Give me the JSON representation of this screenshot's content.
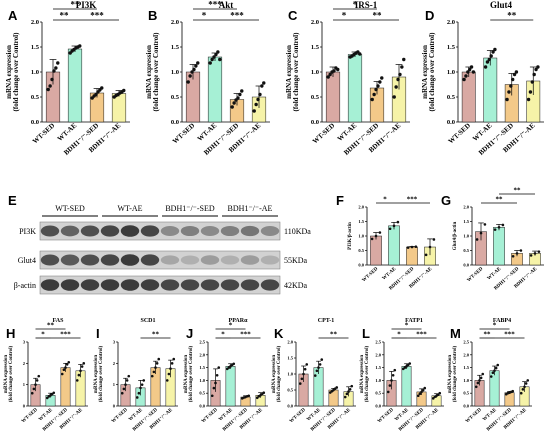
{
  "colors": {
    "WT-SED": "#d9a9a3",
    "WT-AE": "#a6f0d5",
    "BDH1-SED": "#f3c989",
    "BDH1-AE": "#f6f3a8",
    "edge": "#1a1a1a",
    "dot": "#111111"
  },
  "blot": {
    "letter": "E",
    "groups": [
      "WT-SED",
      "WT-AE",
      "BDH1⁻/⁻-SED",
      "BDH1⁻/⁻-AE"
    ],
    "rows": [
      {
        "label": "PI3K",
        "size": "110KDa",
        "intensity": [
          0.8,
          0.7,
          0.8,
          0.85,
          0.9,
          0.85,
          0.5,
          0.55,
          0.5,
          0.55,
          0.6,
          0.5
        ]
      },
      {
        "label": "Glut4",
        "size": "55KDa",
        "intensity": [
          0.8,
          0.75,
          0.8,
          0.85,
          0.9,
          0.85,
          0.35,
          0.3,
          0.4,
          0.3,
          0.4,
          0.3
        ]
      },
      {
        "label": "β-actin",
        "size": "42KDa",
        "intensity": [
          0.9,
          0.9,
          0.88,
          0.9,
          0.9,
          0.88,
          0.85,
          0.85,
          0.85,
          0.85,
          0.85,
          0.85
        ]
      }
    ]
  },
  "chart_data": [
    {
      "letter": "A",
      "type": "bar",
      "title": "PI3K",
      "ylabel": "mRNA expression",
      "ylabel2": "(fold change over Control)",
      "categories": [
        "WT-SED",
        "WT-AE",
        "BDH1⁻/⁻-SED",
        "BDH1⁻/⁻-AE"
      ],
      "values": [
        1.0,
        1.46,
        0.58,
        0.57
      ],
      "errors": [
        0.25,
        0.06,
        0.09,
        0.06
      ],
      "ylim": [
        0,
        2.0
      ],
      "yticks": [
        "0.0",
        "0.5",
        "1.0",
        "1.5",
        "2.0"
      ],
      "points": [
        [
          0.65,
          0.72,
          0.85,
          1.02,
          1.08,
          1.18
        ],
        [
          1.38,
          1.42,
          1.45,
          1.48,
          1.5,
          1.52
        ],
        [
          0.48,
          0.52,
          0.55,
          0.6,
          0.64,
          0.68
        ],
        [
          0.5,
          0.53,
          0.55,
          0.58,
          0.6,
          0.63
        ]
      ],
      "sig": [
        {
          "from": 0,
          "to": 1,
          "level": 1,
          "label": "**"
        },
        {
          "from": 0,
          "to": 2,
          "level": 2,
          "label": "**"
        },
        {
          "from": 1,
          "to": 3,
          "level": 1,
          "label": "***"
        }
      ]
    },
    {
      "letter": "B",
      "type": "bar",
      "title": "Akt",
      "ylabel": "mRNA expression",
      "ylabel2": "(fold change over Control)",
      "categories": [
        "WT-SED",
        "WT-AE",
        "BDH1⁻/⁻-SED",
        "BDH1⁻/⁻-AE"
      ],
      "values": [
        1.0,
        1.3,
        0.45,
        0.5
      ],
      "errors": [
        0.15,
        0.08,
        0.12,
        0.22
      ],
      "ylim": [
        0,
        2.0
      ],
      "yticks": [
        "0.0",
        "0.5",
        "1.0",
        "1.5",
        "2.0"
      ],
      "points": [
        [
          0.8,
          0.92,
          1.0,
          1.05,
          1.12,
          1.18
        ],
        [
          1.18,
          1.25,
          1.3,
          1.35,
          1.4,
          1.25
        ],
        [
          0.3,
          0.38,
          0.44,
          0.48,
          0.55,
          0.62
        ],
        [
          0.22,
          0.35,
          0.45,
          0.55,
          0.72,
          0.78
        ]
      ],
      "sig": [
        {
          "from": 0,
          "to": 1,
          "level": 1,
          "label": "*"
        },
        {
          "from": 0,
          "to": 2,
          "level": 2,
          "label": "***"
        },
        {
          "from": 1,
          "to": 3,
          "level": 1,
          "label": "***"
        }
      ]
    },
    {
      "letter": "C",
      "type": "bar",
      "title": "IRS-1",
      "ylabel": "mRNA expression",
      "ylabel2": "(fold change over Control)",
      "categories": [
        "WT-SED",
        "WT-AE",
        "BDH1⁻/⁻-SED",
        "BDH1⁻/⁻-AE"
      ],
      "values": [
        1.0,
        1.35,
        0.68,
        0.9
      ],
      "errors": [
        0.1,
        0.05,
        0.13,
        0.25
      ],
      "ylim": [
        0,
        2.0
      ],
      "yticks": [
        "0.0",
        "0.5",
        "1.0",
        "1.5",
        "2.0"
      ],
      "points": [
        [
          0.9,
          0.95,
          1.0,
          1.02,
          1.08,
          1.05
        ],
        [
          1.3,
          1.32,
          1.35,
          1.38,
          1.4,
          1.36
        ],
        [
          0.45,
          0.55,
          0.65,
          0.72,
          0.8,
          0.88
        ],
        [
          0.5,
          0.7,
          0.85,
          0.95,
          1.1,
          1.25
        ]
      ],
      "sig": [
        {
          "from": 0,
          "to": 1,
          "level": 1,
          "label": "*"
        },
        {
          "from": 0,
          "to": 2,
          "level": 2,
          "label": "*"
        },
        {
          "from": 1,
          "to": 3,
          "level": 1,
          "label": "**"
        }
      ]
    },
    {
      "letter": "D",
      "type": "bar",
      "title": "Glut4",
      "ylabel": "mRNA expression",
      "ylabel2": "(fold change over Control)",
      "categories": [
        "WT-SED",
        "WT-AE",
        "BDH1⁻/⁻-SED",
        "BDH1⁻/⁻-AE"
      ],
      "values": [
        1.0,
        1.28,
        0.75,
        0.82
      ],
      "errors": [
        0.1,
        0.15,
        0.22,
        0.28
      ],
      "ylim": [
        0,
        2.0
      ],
      "yticks": [
        "0.0",
        "0.5",
        "1.0",
        "1.5",
        "2.0"
      ],
      "points": [
        [
          0.85,
          0.92,
          1.0,
          1.05,
          1.1,
          1.0
        ],
        [
          1.1,
          1.2,
          1.25,
          1.32,
          1.4,
          1.45
        ],
        [
          0.45,
          0.6,
          0.72,
          0.85,
          0.95,
          1.0
        ],
        [
          0.45,
          0.6,
          0.8,
          0.95,
          1.05,
          1.1
        ]
      ],
      "sig": [
        {
          "from": 1,
          "to": 3,
          "level": 1,
          "label": "**"
        }
      ]
    },
    {
      "letter": "F",
      "type": "bar",
      "title": "",
      "ylabel": "PI3K/β-actin",
      "ylabel2": "",
      "categories": [
        "WT-SED",
        "WT-AE",
        "BDH1⁻/⁻-SED",
        "BDH1⁻/⁻-AE"
      ],
      "values": [
        1.0,
        1.35,
        0.62,
        0.62
      ],
      "errors": [
        0.12,
        0.12,
        0.02,
        0.28
      ],
      "ylim": [
        0,
        2.0
      ],
      "yticks": [
        "0.0",
        "0.5",
        "1.0",
        "1.5",
        "2.0"
      ],
      "points": [
        [
          0.9,
          1.0,
          1.12
        ],
        [
          1.25,
          1.35,
          1.48
        ],
        [
          0.6,
          0.62,
          0.63
        ],
        [
          0.35,
          0.62,
          0.88
        ]
      ],
      "sig": [
        {
          "from": 0,
          "to": 1,
          "level": 1,
          "label": "*"
        },
        {
          "from": 1,
          "to": 3,
          "level": 1,
          "label": "***"
        }
      ]
    },
    {
      "letter": "G",
      "type": "bar",
      "title": "",
      "ylabel": "Glut4/β-actin",
      "ylabel2": "",
      "categories": [
        "WT-SED",
        "WT-AE",
        "BDH1⁻/⁻-SED",
        "BDH1⁻/⁻-AE"
      ],
      "values": [
        1.15,
        1.3,
        0.4,
        0.4
      ],
      "errors": [
        0.3,
        0.1,
        0.1,
        0.08
      ],
      "ylim": [
        0,
        2.0
      ],
      "yticks": [
        "0.0",
        "0.5",
        "1.0",
        "1.5",
        "2.0"
      ],
      "points": [
        [
          0.88,
          1.1,
          1.4
        ],
        [
          1.22,
          1.3,
          1.38
        ],
        [
          0.3,
          0.4,
          0.5
        ],
        [
          0.33,
          0.4,
          0.46
        ]
      ],
      "sig": [
        {
          "from": 0,
          "to": 2,
          "level": 1,
          "label": "**"
        },
        {
          "from": 1,
          "to": 3,
          "level": 2,
          "label": "**"
        }
      ]
    },
    {
      "letter": "H",
      "type": "bar",
      "title": "FAS",
      "ylabel": "mRNA expression",
      "ylabel2": "(fold change over Control)",
      "categories": [
        "WT-SED",
        "WT-AE",
        "BDH1⁻/⁻-SED",
        "BDH1⁻/⁻-AE"
      ],
      "values": [
        1.0,
        0.5,
        1.8,
        1.65
      ],
      "errors": [
        0.3,
        0.1,
        0.2,
        0.3
      ],
      "ylim": [
        0,
        3
      ],
      "yticks": [
        "0",
        "1",
        "2",
        "3"
      ],
      "points": [
        [
          0.6,
          0.8,
          1.0,
          1.2,
          1.4
        ],
        [
          0.38,
          0.45,
          0.5,
          0.55,
          0.62
        ],
        [
          1.5,
          1.7,
          1.8,
          1.95,
          2.05
        ],
        [
          1.2,
          1.45,
          1.65,
          1.85,
          2.0
        ]
      ],
      "sig": [
        {
          "from": 0,
          "to": 1,
          "level": 1,
          "label": "*"
        },
        {
          "from": 0,
          "to": 2,
          "level": 2,
          "label": "**"
        },
        {
          "from": 1,
          "to": 3,
          "level": 1,
          "label": "***"
        }
      ]
    },
    {
      "letter": "I",
      "type": "bar",
      "title": "SCD1",
      "ylabel": "mRNA expression",
      "ylabel2": "(fold change over Control)",
      "categories": [
        "WT-SED",
        "WT-AE",
        "BDH1⁻/⁻-SED",
        "BDH1⁻/⁻-AE"
      ],
      "values": [
        1.0,
        0.85,
        1.8,
        1.75
      ],
      "errors": [
        0.3,
        0.35,
        0.3,
        0.4
      ],
      "ylim": [
        0,
        3
      ],
      "yticks": [
        "0",
        "1",
        "2",
        "3"
      ],
      "points": [
        [
          0.6,
          0.8,
          1.0,
          1.2,
          1.4
        ],
        [
          0.4,
          0.6,
          0.85,
          1.0,
          1.2
        ],
        [
          1.4,
          1.6,
          1.8,
          2.0,
          2.2
        ],
        [
          1.2,
          1.5,
          1.75,
          2.0,
          2.2
        ]
      ],
      "sig": [
        {
          "from": 1,
          "to": 3,
          "level": 1,
          "label": "**"
        }
      ]
    },
    {
      "letter": "J",
      "type": "bar",
      "title": "PPARα",
      "ylabel": "mRNA expression",
      "ylabel2": "(fold change over Control)",
      "categories": [
        "WT-SED",
        "WT-AE",
        "BDH1⁻/⁻-SED",
        "BDH1⁻/⁻-AE"
      ],
      "values": [
        1.0,
        1.55,
        0.35,
        0.42
      ],
      "errors": [
        0.45,
        0.1,
        0.05,
        0.1
      ],
      "ylim": [
        0,
        2.5
      ],
      "yticks": [
        "0.0",
        "0.5",
        "1.0",
        "1.5",
        "2.0",
        "2.5"
      ],
      "points": [
        [
          0.4,
          0.7,
          0.9,
          1.2,
          1.5
        ],
        [
          1.45,
          1.5,
          1.55,
          1.6,
          1.65
        ],
        [
          0.3,
          0.33,
          0.35,
          0.38,
          0.4
        ],
        [
          0.32,
          0.38,
          0.42,
          0.46,
          0.52
        ]
      ],
      "sig": [
        {
          "from": 0,
          "to": 1,
          "level": 1,
          "label": "*"
        },
        {
          "from": 0,
          "to": 2,
          "level": 2,
          "label": "*"
        },
        {
          "from": 1,
          "to": 3,
          "level": 1,
          "label": "***"
        }
      ]
    },
    {
      "letter": "K",
      "type": "bar",
      "title": "CPT-1",
      "ylabel": "mRNA expression",
      "ylabel2": "(fold change over Control)",
      "categories": [
        "WT-SED",
        "WT-AE",
        "BDH1⁻/⁻-SED",
        "BDH1⁻/⁻-AE"
      ],
      "values": [
        1.0,
        1.2,
        0.5,
        0.45
      ],
      "errors": [
        0.25,
        0.2,
        0.05,
        0.15
      ],
      "ylim": [
        0,
        2.0
      ],
      "yticks": [
        "0.0",
        "0.5",
        "1.0",
        "1.5",
        "2.0"
      ],
      "points": [
        [
          0.7,
          0.85,
          1.0,
          1.15,
          1.3
        ],
        [
          0.95,
          1.1,
          1.2,
          1.3,
          1.45
        ],
        [
          0.42,
          0.46,
          0.5,
          0.54,
          0.58
        ],
        [
          0.28,
          0.38,
          0.45,
          0.52,
          0.62
        ]
      ],
      "sig": [
        {
          "from": 1,
          "to": 3,
          "level": 1,
          "label": "**"
        }
      ]
    },
    {
      "letter": "L",
      "type": "bar",
      "title": "FATP1",
      "ylabel": "mRNA expression",
      "ylabel2": "(fold change over Control)",
      "categories": [
        "WT-SED",
        "WT-AE",
        "BDH1⁻/⁻-SED",
        "BDH1⁻/⁻-AE"
      ],
      "values": [
        1.0,
        1.55,
        0.55,
        0.4
      ],
      "errors": [
        0.35,
        0.1,
        0.12,
        0.08
      ],
      "ylim": [
        0,
        2.5
      ],
      "yticks": [
        "0.0",
        "0.5",
        "1.0",
        "1.5",
        "2.0",
        "2.5"
      ],
      "points": [
        [
          0.55,
          0.8,
          1.0,
          1.2,
          1.4
        ],
        [
          1.45,
          1.5,
          1.55,
          1.6,
          1.66
        ],
        [
          0.4,
          0.48,
          0.55,
          0.62,
          0.7
        ],
        [
          0.3,
          0.36,
          0.4,
          0.44,
          0.5
        ]
      ],
      "sig": [
        {
          "from": 0,
          "to": 1,
          "level": 1,
          "label": "*"
        },
        {
          "from": 0,
          "to": 2,
          "level": 2,
          "label": "*"
        },
        {
          "from": 1,
          "to": 3,
          "level": 1,
          "label": "***"
        }
      ]
    },
    {
      "letter": "M",
      "type": "bar",
      "title": "FABP4",
      "ylabel": "mRNA expression",
      "ylabel2": "(fold change over Control)",
      "categories": [
        "WT-SED",
        "WT-AE",
        "BDH1⁻/⁻-SED",
        "BDH1⁻/⁻-AE"
      ],
      "values": [
        1.0,
        1.38,
        0.52,
        0.75
      ],
      "errors": [
        0.2,
        0.18,
        0.05,
        0.2
      ],
      "ylim": [
        0,
        2.5
      ],
      "yticks": [
        "0.0",
        "0.5",
        "1.0",
        "1.5",
        "2.0",
        "2.5"
      ],
      "points": [
        [
          0.75,
          0.9,
          1.0,
          1.1,
          1.25
        ],
        [
          1.15,
          1.3,
          1.38,
          1.48,
          1.6
        ],
        [
          0.46,
          0.5,
          0.52,
          0.55,
          0.58
        ],
        [
          0.5,
          0.65,
          0.75,
          0.88,
          1.0
        ]
      ],
      "sig": [
        {
          "from": 0,
          "to": 1,
          "level": 1,
          "label": "**"
        },
        {
          "from": 0,
          "to": 2,
          "level": 2,
          "label": "*"
        },
        {
          "from": 1,
          "to": 3,
          "level": 1,
          "label": "***"
        }
      ]
    }
  ]
}
